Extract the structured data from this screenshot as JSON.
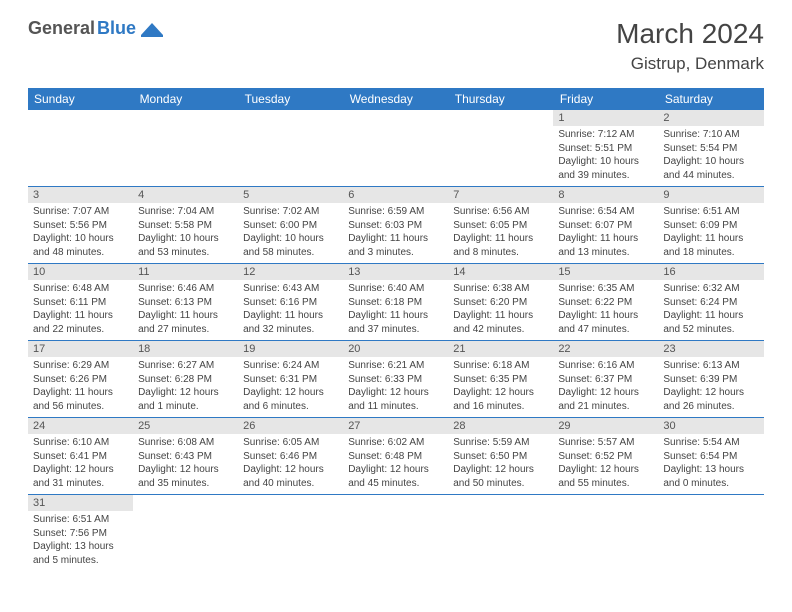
{
  "logo": {
    "part1": "General",
    "part2": "Blue"
  },
  "title": "March 2024",
  "location": "Gistrup, Denmark",
  "colors": {
    "header_bg": "#2f79c4",
    "header_text": "#ffffff",
    "daynum_bg": "#e6e6e6",
    "border": "#2f79c4",
    "text": "#444444"
  },
  "day_headers": [
    "Sunday",
    "Monday",
    "Tuesday",
    "Wednesday",
    "Thursday",
    "Friday",
    "Saturday"
  ],
  "weeks": [
    [
      null,
      null,
      null,
      null,
      null,
      {
        "n": "1",
        "sunrise": "Sunrise: 7:12 AM",
        "sunset": "Sunset: 5:51 PM",
        "daylight": "Daylight: 10 hours and 39 minutes."
      },
      {
        "n": "2",
        "sunrise": "Sunrise: 7:10 AM",
        "sunset": "Sunset: 5:54 PM",
        "daylight": "Daylight: 10 hours and 44 minutes."
      }
    ],
    [
      {
        "n": "3",
        "sunrise": "Sunrise: 7:07 AM",
        "sunset": "Sunset: 5:56 PM",
        "daylight": "Daylight: 10 hours and 48 minutes."
      },
      {
        "n": "4",
        "sunrise": "Sunrise: 7:04 AM",
        "sunset": "Sunset: 5:58 PM",
        "daylight": "Daylight: 10 hours and 53 minutes."
      },
      {
        "n": "5",
        "sunrise": "Sunrise: 7:02 AM",
        "sunset": "Sunset: 6:00 PM",
        "daylight": "Daylight: 10 hours and 58 minutes."
      },
      {
        "n": "6",
        "sunrise": "Sunrise: 6:59 AM",
        "sunset": "Sunset: 6:03 PM",
        "daylight": "Daylight: 11 hours and 3 minutes."
      },
      {
        "n": "7",
        "sunrise": "Sunrise: 6:56 AM",
        "sunset": "Sunset: 6:05 PM",
        "daylight": "Daylight: 11 hours and 8 minutes."
      },
      {
        "n": "8",
        "sunrise": "Sunrise: 6:54 AM",
        "sunset": "Sunset: 6:07 PM",
        "daylight": "Daylight: 11 hours and 13 minutes."
      },
      {
        "n": "9",
        "sunrise": "Sunrise: 6:51 AM",
        "sunset": "Sunset: 6:09 PM",
        "daylight": "Daylight: 11 hours and 18 minutes."
      }
    ],
    [
      {
        "n": "10",
        "sunrise": "Sunrise: 6:48 AM",
        "sunset": "Sunset: 6:11 PM",
        "daylight": "Daylight: 11 hours and 22 minutes."
      },
      {
        "n": "11",
        "sunrise": "Sunrise: 6:46 AM",
        "sunset": "Sunset: 6:13 PM",
        "daylight": "Daylight: 11 hours and 27 minutes."
      },
      {
        "n": "12",
        "sunrise": "Sunrise: 6:43 AM",
        "sunset": "Sunset: 6:16 PM",
        "daylight": "Daylight: 11 hours and 32 minutes."
      },
      {
        "n": "13",
        "sunrise": "Sunrise: 6:40 AM",
        "sunset": "Sunset: 6:18 PM",
        "daylight": "Daylight: 11 hours and 37 minutes."
      },
      {
        "n": "14",
        "sunrise": "Sunrise: 6:38 AM",
        "sunset": "Sunset: 6:20 PM",
        "daylight": "Daylight: 11 hours and 42 minutes."
      },
      {
        "n": "15",
        "sunrise": "Sunrise: 6:35 AM",
        "sunset": "Sunset: 6:22 PM",
        "daylight": "Daylight: 11 hours and 47 minutes."
      },
      {
        "n": "16",
        "sunrise": "Sunrise: 6:32 AM",
        "sunset": "Sunset: 6:24 PM",
        "daylight": "Daylight: 11 hours and 52 minutes."
      }
    ],
    [
      {
        "n": "17",
        "sunrise": "Sunrise: 6:29 AM",
        "sunset": "Sunset: 6:26 PM",
        "daylight": "Daylight: 11 hours and 56 minutes."
      },
      {
        "n": "18",
        "sunrise": "Sunrise: 6:27 AM",
        "sunset": "Sunset: 6:28 PM",
        "daylight": "Daylight: 12 hours and 1 minute."
      },
      {
        "n": "19",
        "sunrise": "Sunrise: 6:24 AM",
        "sunset": "Sunset: 6:31 PM",
        "daylight": "Daylight: 12 hours and 6 minutes."
      },
      {
        "n": "20",
        "sunrise": "Sunrise: 6:21 AM",
        "sunset": "Sunset: 6:33 PM",
        "daylight": "Daylight: 12 hours and 11 minutes."
      },
      {
        "n": "21",
        "sunrise": "Sunrise: 6:18 AM",
        "sunset": "Sunset: 6:35 PM",
        "daylight": "Daylight: 12 hours and 16 minutes."
      },
      {
        "n": "22",
        "sunrise": "Sunrise: 6:16 AM",
        "sunset": "Sunset: 6:37 PM",
        "daylight": "Daylight: 12 hours and 21 minutes."
      },
      {
        "n": "23",
        "sunrise": "Sunrise: 6:13 AM",
        "sunset": "Sunset: 6:39 PM",
        "daylight": "Daylight: 12 hours and 26 minutes."
      }
    ],
    [
      {
        "n": "24",
        "sunrise": "Sunrise: 6:10 AM",
        "sunset": "Sunset: 6:41 PM",
        "daylight": "Daylight: 12 hours and 31 minutes."
      },
      {
        "n": "25",
        "sunrise": "Sunrise: 6:08 AM",
        "sunset": "Sunset: 6:43 PM",
        "daylight": "Daylight: 12 hours and 35 minutes."
      },
      {
        "n": "26",
        "sunrise": "Sunrise: 6:05 AM",
        "sunset": "Sunset: 6:46 PM",
        "daylight": "Daylight: 12 hours and 40 minutes."
      },
      {
        "n": "27",
        "sunrise": "Sunrise: 6:02 AM",
        "sunset": "Sunset: 6:48 PM",
        "daylight": "Daylight: 12 hours and 45 minutes."
      },
      {
        "n": "28",
        "sunrise": "Sunrise: 5:59 AM",
        "sunset": "Sunset: 6:50 PM",
        "daylight": "Daylight: 12 hours and 50 minutes."
      },
      {
        "n": "29",
        "sunrise": "Sunrise: 5:57 AM",
        "sunset": "Sunset: 6:52 PM",
        "daylight": "Daylight: 12 hours and 55 minutes."
      },
      {
        "n": "30",
        "sunrise": "Sunrise: 5:54 AM",
        "sunset": "Sunset: 6:54 PM",
        "daylight": "Daylight: 13 hours and 0 minutes."
      }
    ],
    [
      {
        "n": "31",
        "sunrise": "Sunrise: 6:51 AM",
        "sunset": "Sunset: 7:56 PM",
        "daylight": "Daylight: 13 hours and 5 minutes."
      },
      null,
      null,
      null,
      null,
      null,
      null
    ]
  ]
}
